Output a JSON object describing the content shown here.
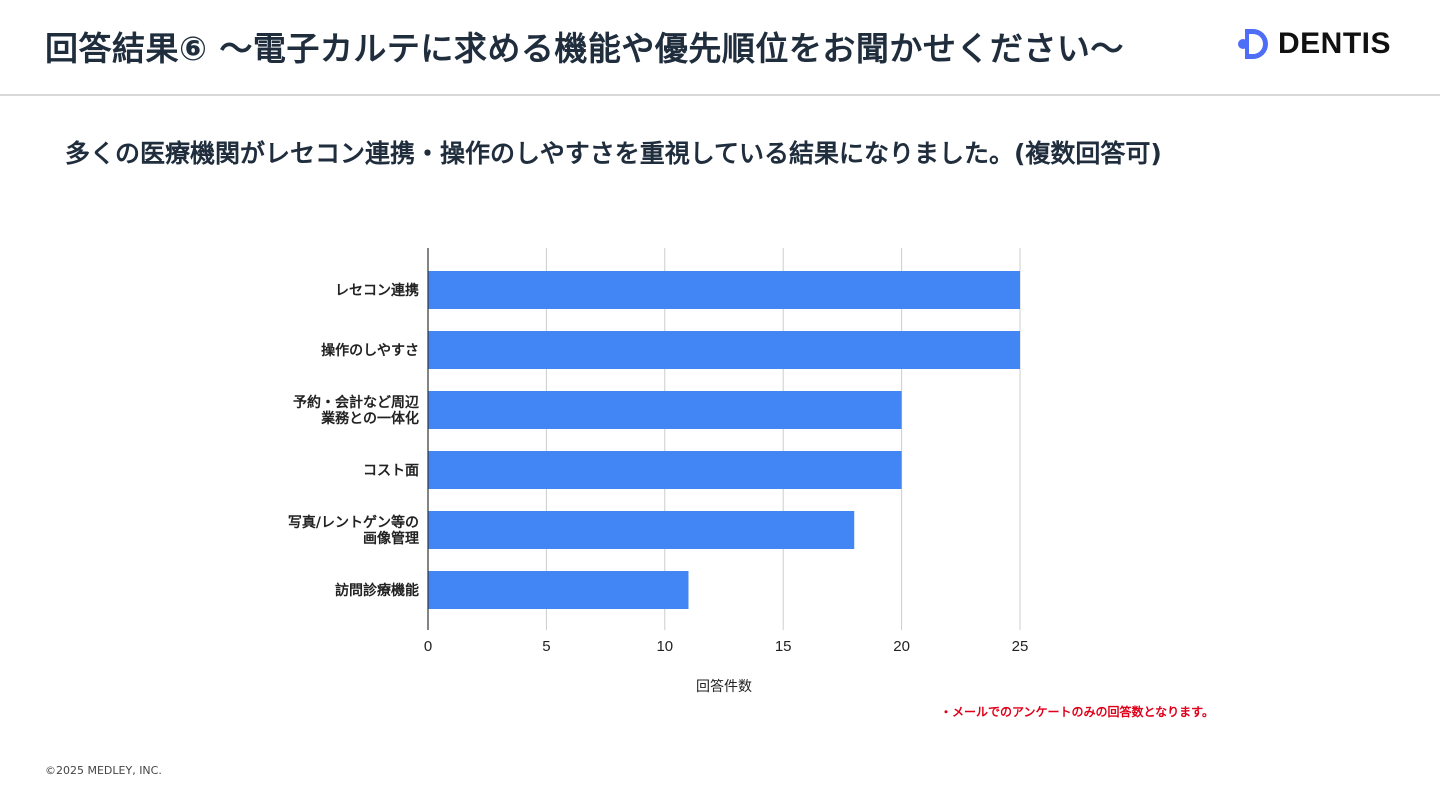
{
  "header": {
    "title": "回答結果⑥ 〜電子カルテに求める機能や優先順位をお聞かせください〜",
    "logo_text": "DENTIS"
  },
  "subtitle": "多くの医療機関がレセコン連携・操作のしやすさを重視している結果になりました。(複数回答可)",
  "chart_data": {
    "type": "bar",
    "orientation": "horizontal",
    "categories": [
      [
        "レセコン連携"
      ],
      [
        "操作のしやすさ"
      ],
      [
        "予約・会計など周辺",
        "業務との一体化"
      ],
      [
        "コスト面"
      ],
      [
        "写真/レントゲン等の",
        "画像管理"
      ],
      [
        "訪問診療機能"
      ]
    ],
    "values": [
      25,
      25,
      20,
      20,
      18,
      11
    ],
    "xticks": [
      "0",
      "5",
      "10",
      "15",
      "20",
      "25"
    ],
    "xlim": [
      0,
      25
    ],
    "xlabel": "回答件数",
    "grid": true,
    "bar_color": "#4285f4"
  },
  "note": "・メールでのアンケートのみの回答数となります。",
  "footer": {
    "copyright": "©2025 MEDLEY, INC."
  }
}
